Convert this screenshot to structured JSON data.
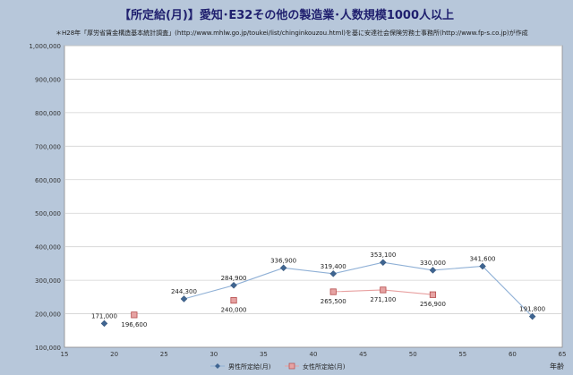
{
  "title": "【所定給(月)】愛知･E32その他の製造業･人数規模1000人以上",
  "note": "＊H28年「厚労省賃金構造基本統計調査」(http://www.mhlw.go.jp/toukei/list/chinginkouzou.html)を基に安達社会保険労務士事務所(http://www.fp-s.co.jp)が作成",
  "colors": {
    "male": "#3f6591",
    "female": "#d9706f",
    "plot_bg": "#ffffff",
    "page_bg": "#b7c7da"
  },
  "chart_data": {
    "type": "scatter",
    "title": "【所定給(月)】愛知･E32その他の製造業･人数規模1000人以上",
    "xlabel": "年齢",
    "ylabel": "",
    "xlim": [
      15,
      65
    ],
    "ylim": [
      100000,
      1000000
    ],
    "x_ticks": [
      15,
      20,
      25,
      30,
      35,
      40,
      45,
      50,
      55,
      60,
      65
    ],
    "y_ticks": [
      100000,
      200000,
      300000,
      400000,
      500000,
      600000,
      700000,
      800000,
      900000,
      1000000
    ],
    "y_tick_labels": [
      "100,000",
      "200,000",
      "300,000",
      "400,000",
      "500,000",
      "600,000",
      "700,000",
      "800,000",
      "900,000",
      "1,000,000"
    ],
    "grid": true,
    "legend_position": "bottom",
    "series": [
      {
        "name": "男性所定給(月)",
        "marker": "diamond",
        "segments": [
          [
            {
              "x": 19,
              "y": 171000,
              "label": "171,000"
            }
          ],
          [
            {
              "x": 27,
              "y": 244300,
              "label": "244,300"
            },
            {
              "x": 32,
              "y": 284900,
              "label": "284,900"
            },
            {
              "x": 37,
              "y": 336900,
              "label": "336,900"
            },
            {
              "x": 42,
              "y": 319400,
              "label": "319,400"
            },
            {
              "x": 47,
              "y": 353100,
              "label": "353,100"
            },
            {
              "x": 52,
              "y": 330000,
              "label": "330,000"
            },
            {
              "x": 57,
              "y": 341600,
              "label": "341,600"
            },
            {
              "x": 62,
              "y": 191800,
              "label": "191,800"
            }
          ]
        ]
      },
      {
        "name": "女性所定給(月)",
        "marker": "square",
        "segments": [
          [
            {
              "x": 22,
              "y": 196600,
              "label": "196,600"
            }
          ],
          [
            {
              "x": 32,
              "y": 240000,
              "label": "240,000"
            }
          ],
          [
            {
              "x": 42,
              "y": 265500,
              "label": "265,500"
            },
            {
              "x": 47,
              "y": 271100,
              "label": "271,100"
            },
            {
              "x": 52,
              "y": 256900,
              "label": "256,900"
            }
          ]
        ]
      }
    ]
  }
}
